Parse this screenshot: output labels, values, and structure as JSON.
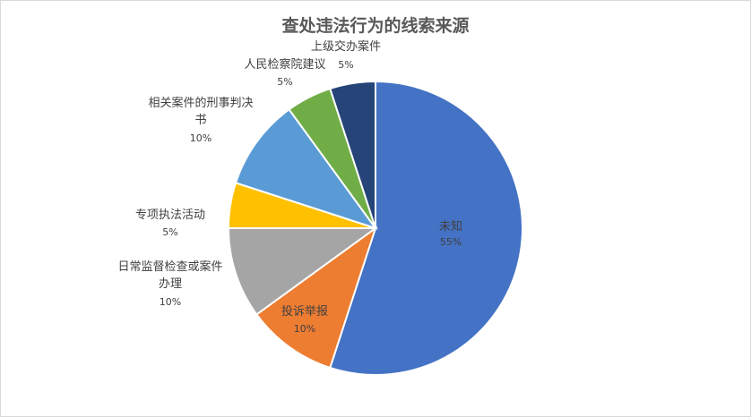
{
  "chart_data": {
    "type": "pie",
    "title": "查处违法行为的线索来源",
    "slices": [
      {
        "label": "未知",
        "value": 55,
        "pct_text": "55%",
        "color": "#4472C4"
      },
      {
        "label": "投诉举报",
        "value": 10,
        "pct_text": "10%",
        "color": "#ED7D31"
      },
      {
        "label": "日常监督检查或案件办理",
        "value": 10,
        "pct_text": "10%",
        "color": "#A5A5A5"
      },
      {
        "label": "专项执法活动",
        "value": 5,
        "pct_text": "5%",
        "color": "#FFC000"
      },
      {
        "label": "相关案件的刑事判决书",
        "value": 10,
        "pct_text": "10%",
        "color": "#5B9BD5"
      },
      {
        "label": "人民检察院建议",
        "value": 5,
        "pct_text": "5%",
        "color": "#70AD47"
      },
      {
        "label": "上级交办案件",
        "value": 5,
        "pct_text": "5%",
        "color": "#264478"
      }
    ]
  }
}
